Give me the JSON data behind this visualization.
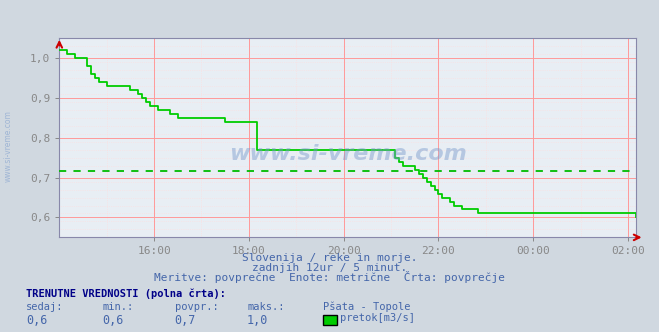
{
  "title": "Pšata - Topole",
  "bg_color": "#d0d8e0",
  "plot_bg_color": "#e8eef4",
  "grid_color_major": "#ff9999",
  "grid_color_minor": "#ffdddd",
  "line_color": "#00cc00",
  "avg_line_color": "#00bb00",
  "avg_value": 0.716,
  "xlabel_color": "#4466aa",
  "ylabel_color": "#4466aa",
  "title_color": "#000044",
  "watermark_text": "www.si-vreme.com",
  "sidebar_text": "www.si-vreme.com",
  "subtitle1": "Slovenija / reke in morje.",
  "subtitle2": "zadnjih 12ur / 5 minut.",
  "subtitle3": "Meritve: povprečne  Enote: metrične  Črta: povprečje",
  "footer_bold": "TRENUTNE VREDNOSTI (polna črta):",
  "footer_cols": [
    "sedaj:",
    "min.:",
    "povpr.:",
    "maks.:",
    "Pšata - Topole"
  ],
  "footer_vals": [
    "0,6",
    "0,6",
    "0,7",
    "1,0"
  ],
  "footer_legend_label": "pretok[m3/s]",
  "footer_legend_color": "#00cc00",
  "ylim": [
    0.55,
    1.05
  ],
  "yticks": [
    0.6,
    0.7,
    0.8,
    0.9,
    1.0
  ],
  "ytick_labels": [
    "0,6",
    "0,7",
    "0,8",
    "0,9",
    "1,0"
  ],
  "xlim": [
    14.0,
    26.167
  ],
  "xtick_positions": [
    16,
    18,
    20,
    22,
    24,
    26
  ],
  "xtick_labels": [
    "16:00",
    "18:00",
    "20:00",
    "22:00",
    "00:00",
    "02:00"
  ],
  "arrow_color": "#cc0000",
  "series_x_hours": [
    14.0,
    14.083,
    14.167,
    14.25,
    14.333,
    14.417,
    14.5,
    14.583,
    14.667,
    14.75,
    14.833,
    14.917,
    15.0,
    15.083,
    15.167,
    15.25,
    15.333,
    15.5,
    15.583,
    15.667,
    15.75,
    15.833,
    15.917,
    16.0,
    16.083,
    16.167,
    16.333,
    16.5,
    16.667,
    16.833,
    17.0,
    17.167,
    17.333,
    17.5,
    17.667,
    17.833,
    18.0,
    18.083,
    18.167,
    19.0,
    19.083,
    19.5,
    21.0,
    21.083,
    21.167,
    21.25,
    21.5,
    21.583,
    21.667,
    21.75,
    21.833,
    21.917,
    22.0,
    22.083,
    22.167,
    22.25,
    22.333,
    22.417,
    22.5,
    22.833,
    26.167
  ],
  "series_y": [
    1.02,
    1.02,
    1.01,
    1.01,
    1.0,
    1.0,
    1.0,
    0.98,
    0.96,
    0.95,
    0.94,
    0.94,
    0.93,
    0.93,
    0.93,
    0.93,
    0.93,
    0.92,
    0.92,
    0.91,
    0.9,
    0.89,
    0.88,
    0.88,
    0.87,
    0.87,
    0.86,
    0.85,
    0.85,
    0.85,
    0.85,
    0.85,
    0.85,
    0.84,
    0.84,
    0.84,
    0.84,
    0.84,
    0.77,
    0.77,
    0.77,
    0.77,
    0.77,
    0.75,
    0.74,
    0.73,
    0.72,
    0.71,
    0.7,
    0.69,
    0.68,
    0.67,
    0.66,
    0.65,
    0.65,
    0.64,
    0.63,
    0.63,
    0.62,
    0.61,
    0.6
  ]
}
